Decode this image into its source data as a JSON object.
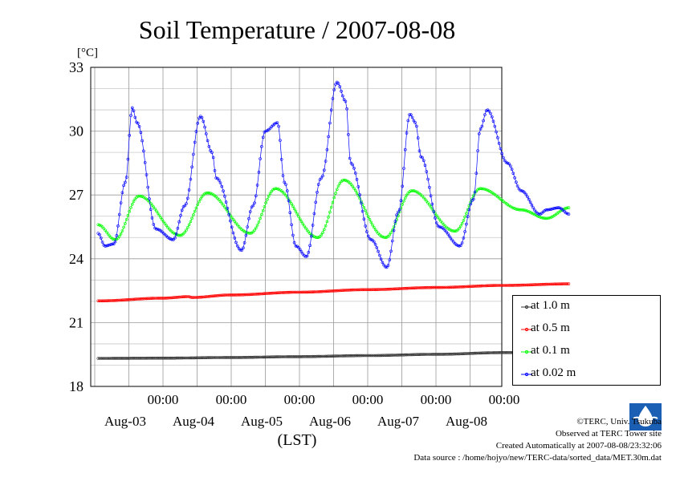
{
  "chart_data": {
    "type": "line",
    "title": "Soil Temperature / 2007-08-08",
    "ylabel": "[°C]",
    "xlabel": "(LST)",
    "ylim": [
      18,
      33
    ],
    "y_ticks": [
      "33",
      "30",
      "27",
      "24",
      "21",
      "18"
    ],
    "x_ticks": [
      {
        "time": "00:00",
        "date": "Aug-03"
      },
      {
        "time": "00:00",
        "date": "Aug-04"
      },
      {
        "time": "00:00",
        "date": "Aug-05"
      },
      {
        "time": "00:00",
        "date": "Aug-06"
      },
      {
        "time": "00:00",
        "date": "Aug-07"
      },
      {
        "time": "00:00",
        "date": "Aug-08"
      }
    ],
    "grid": true,
    "legend_position": "right, below plot",
    "series": [
      {
        "name": "at 1.0 m",
        "color": "#333333",
        "x_day_offsets": [
          -0.95,
          0.0,
          1.0,
          2.0,
          3.0,
          4.0,
          5.0,
          5.75,
          5.8,
          5.95
        ],
        "values": [
          19.32,
          19.33,
          19.36,
          19.4,
          19.45,
          19.51,
          19.59,
          19.63,
          19.45,
          19.43
        ]
      },
      {
        "name": "at 0.5 m",
        "color": "#ff0000",
        "x_day_offsets": [
          -0.95,
          0.0,
          0.38,
          0.42,
          1.0,
          2.0,
          3.0,
          4.0,
          5.0,
          5.95
        ],
        "values": [
          22.02,
          22.15,
          22.22,
          22.18,
          22.3,
          22.43,
          22.55,
          22.65,
          22.75,
          22.82
        ]
      },
      {
        "name": "at 0.1 m",
        "color": "#00ff00",
        "x_day_offsets": [
          -0.95,
          -0.7,
          -0.35,
          0.25,
          0.65,
          1.28,
          1.65,
          2.27,
          2.65,
          3.26,
          3.65,
          4.28,
          4.65,
          5.25,
          5.62,
          5.95
        ],
        "values": [
          25.6,
          24.9,
          26.95,
          25.1,
          27.1,
          25.2,
          27.3,
          25.0,
          27.7,
          25.0,
          27.2,
          25.3,
          27.3,
          26.3,
          25.9,
          26.4
        ],
        "values_note": ""
      },
      {
        "name": "at 0.02 m",
        "color": "#0000ff",
        "x_day_offsets": [
          -0.95,
          -0.85,
          -0.72,
          -0.55,
          -0.45,
          -0.38,
          -0.1,
          0.15,
          0.32,
          0.55,
          0.72,
          0.78,
          1.15,
          1.32,
          1.5,
          1.68,
          1.78,
          1.95,
          2.1,
          2.32,
          2.55,
          2.68,
          2.75,
          3.05,
          3.28,
          3.45,
          3.62,
          3.7,
          3.78,
          4.05,
          4.35,
          4.55,
          4.65,
          4.75,
          5.05,
          5.25,
          5.52,
          5.62,
          5.8,
          5.95
        ],
        "values": [
          25.2,
          24.6,
          24.7,
          27.6,
          31.1,
          30.4,
          25.4,
          24.9,
          26.5,
          30.7,
          29.0,
          27.8,
          24.4,
          26.5,
          30.0,
          30.4,
          27.6,
          24.6,
          24.1,
          27.8,
          32.3,
          31.4,
          28.5,
          24.9,
          23.6,
          26.2,
          30.8,
          30.4,
          28.8,
          25.5,
          24.6,
          26.8,
          30.1,
          31.0,
          28.5,
          27.2,
          26.1,
          26.3,
          26.4,
          26.1
        ]
      }
    ]
  },
  "credits": {
    "copyright": "©TERC, Univ. Tsukuba",
    "observed": "Observed at TERC Tower site",
    "created": "Created Automatically at 2007-08-08/23:32:06",
    "source": "Data source : /home/hojyo/new/TERC-data/sorted_data/MET.30m.dat"
  },
  "logo": {
    "text": "TERC",
    "color": "#1a5fb4"
  }
}
